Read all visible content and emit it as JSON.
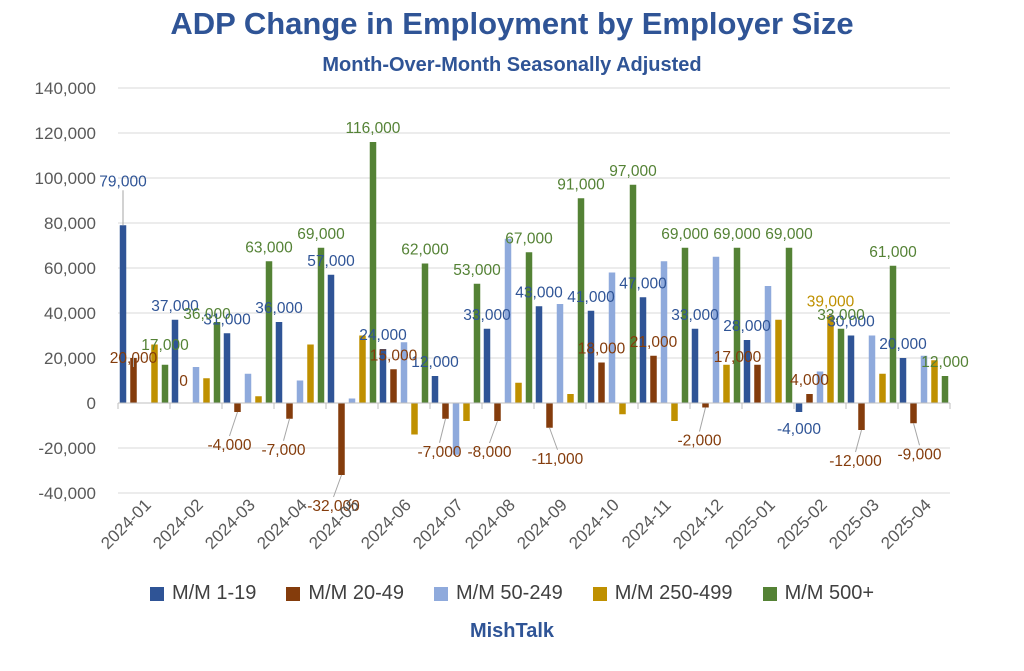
{
  "title": "ADP Change in Employment by Employer Size",
  "subtitle": "Month-Over-Month Seasonally Adjusted",
  "footer": "MishTalk",
  "chart_data": {
    "type": "bar",
    "title": "ADP Change in Employment by Employer Size",
    "subtitle": "Month-Over-Month Seasonally Adjusted",
    "xlabel": "",
    "ylabel": "",
    "ylim": [
      -40000,
      140000
    ],
    "yticks": [
      -40000,
      -20000,
      0,
      20000,
      40000,
      60000,
      80000,
      100000,
      120000,
      140000
    ],
    "ytick_labels": [
      "-40,000",
      "-20,000",
      "0",
      "20,000",
      "40,000",
      "60,000",
      "80,000",
      "100,000",
      "120,000",
      "140,000"
    ],
    "grid": true,
    "legend_position": "bottom",
    "categories": [
      "2024-01",
      "2024-02",
      "2024-03",
      "2024-04",
      "2024-05",
      "2024-06",
      "2024-07",
      "2024-08",
      "2024-09",
      "2024-10",
      "2024-11",
      "2024-12",
      "2025-01",
      "2025-02",
      "2025-03",
      "2025-04"
    ],
    "series": [
      {
        "name": "M/M 1-19",
        "color": "#2f5496",
        "label_color": "#2f5496",
        "values": [
          79000,
          37000,
          31000,
          36000,
          57000,
          24000,
          12000,
          33000,
          43000,
          41000,
          47000,
          33000,
          28000,
          -4000,
          30000,
          20000
        ],
        "labels": [
          "79,000",
          "37,000",
          "31,000",
          "36,000",
          "57,000",
          "24,000",
          "12,000",
          "33,000",
          "43,000",
          "41,000",
          "47,000",
          "33,000",
          "28,000",
          "-4,000",
          "30,000",
          "20,000"
        ]
      },
      {
        "name": "M/M 20-49",
        "color": "#843c0c",
        "label_color": "#843c0c",
        "values": [
          20000,
          0,
          -4000,
          -7000,
          -32000,
          15000,
          -7000,
          -8000,
          -11000,
          18000,
          21000,
          -2000,
          17000,
          4000,
          -12000,
          -9000
        ],
        "labels": [
          "20,000",
          "0",
          "-4,000",
          "-7,000",
          "-32,000",
          "15,000",
          "-7,000",
          "-8,000",
          "-11,000",
          "18,000",
          "21,000",
          "-2,000",
          "17,000",
          "4,000",
          "-12,000",
          "-9,000"
        ]
      },
      {
        "name": "M/M 50-249",
        "color": "#8faadc",
        "values": [
          0,
          16000,
          13000,
          10000,
          2000,
          27000,
          -23000,
          73000,
          44000,
          58000,
          63000,
          65000,
          52000,
          14000,
          30000,
          21000
        ]
      },
      {
        "name": "M/M 250-499",
        "color": "#bf9000",
        "label_color": "#bf9000",
        "values": [
          26000,
          11000,
          3000,
          26000,
          30000,
          -14000,
          -8000,
          9000,
          4000,
          -5000,
          -8000,
          17000,
          37000,
          39000,
          13000,
          19000
        ],
        "labels": [
          "",
          "",
          "",
          "",
          "",
          "",
          "",
          "",
          "",
          "",
          "",
          "",
          "",
          "39,000",
          "",
          ""
        ]
      },
      {
        "name": "M/M 500+",
        "color": "#548235",
        "label_color": "#548235",
        "values": [
          17000,
          36000,
          63000,
          69000,
          116000,
          62000,
          53000,
          67000,
          91000,
          97000,
          69000,
          69000,
          69000,
          33000,
          61000,
          12000
        ],
        "labels": [
          "17,000",
          "36,000",
          "63,000",
          "69,000",
          "116,000",
          "62,000",
          "53,000",
          "67,000",
          "91,000",
          "97,000",
          "69,000",
          "69,000",
          "69,000",
          "33,000",
          "61,000",
          "12,000"
        ]
      }
    ]
  }
}
